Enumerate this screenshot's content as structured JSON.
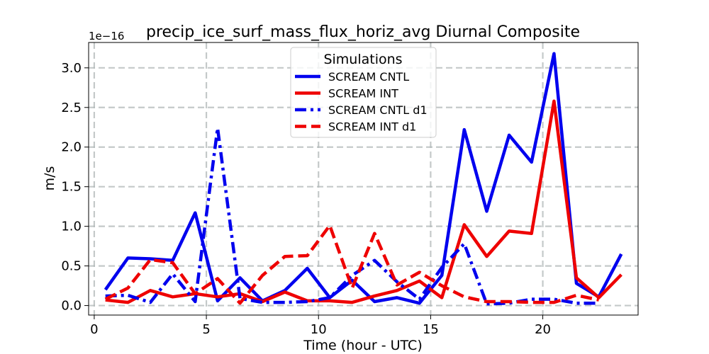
{
  "chart_data": {
    "type": "line",
    "title": "precip_ice_surf_mass_flux_horiz_avg Diurnal Composite",
    "xlabel": "Time (hour - UTC)",
    "ylabel": "m/s",
    "y_offset_text": "1e−16",
    "xlim": [
      -0.25,
      24.25
    ],
    "ylim": [
      -0.12,
      3.32
    ],
    "x_ticks": [
      0,
      5,
      10,
      15,
      20
    ],
    "x_tick_labels": [
      "0",
      "5",
      "10",
      "15",
      "20"
    ],
    "y_ticks": [
      0.0,
      0.5,
      1.0,
      1.5,
      2.0,
      2.5,
      3.0
    ],
    "y_tick_labels": [
      "0.0",
      "0.5",
      "1.0",
      "1.5",
      "2.0",
      "2.5",
      "3.0"
    ],
    "grid": true,
    "legend_title": "Simulations",
    "legend_position": "upper-center",
    "x": [
      0.5,
      1.5,
      2.5,
      3.5,
      4.5,
      5.5,
      6.5,
      7.5,
      8.5,
      9.5,
      10.5,
      11.5,
      12.5,
      13.5,
      14.5,
      15.5,
      16.5,
      17.5,
      18.5,
      19.5,
      20.5,
      21.5,
      22.5,
      23.5
    ],
    "series": [
      {
        "name": "SCREAM CNTL",
        "color": "#0000ee",
        "dash": "solid",
        "values": [
          0.2,
          0.6,
          0.59,
          0.57,
          1.17,
          0.06,
          0.35,
          0.06,
          0.19,
          0.47,
          0.1,
          0.32,
          0.05,
          0.1,
          0.03,
          0.38,
          2.22,
          1.19,
          2.15,
          1.81,
          3.18,
          0.28,
          0.11,
          0.65
        ]
      },
      {
        "name": "SCREAM INT",
        "color": "#ee0000",
        "dash": "solid",
        "values": [
          0.07,
          0.04,
          0.19,
          0.11,
          0.15,
          0.11,
          0.15,
          0.05,
          0.17,
          0.06,
          0.06,
          0.04,
          0.12,
          0.19,
          0.31,
          0.1,
          1.02,
          0.62,
          0.94,
          0.91,
          2.58,
          0.35,
          0.1,
          0.39
        ]
      },
      {
        "name": "SCREAM CNTL d1",
        "color": "#0000ee",
        "dash": "dashdot",
        "values": [
          0.12,
          0.13,
          0.04,
          0.4,
          0.05,
          2.24,
          0.09,
          0.04,
          0.04,
          0.05,
          0.1,
          0.38,
          0.57,
          0.3,
          0.08,
          0.48,
          0.78,
          0.02,
          0.03,
          0.08,
          0.08,
          0.03,
          0.03,
          null
        ]
      },
      {
        "name": "SCREAM INT d1",
        "color": "#ee0000",
        "dash": "dashed",
        "values": [
          0.08,
          0.22,
          0.58,
          0.54,
          0.15,
          0.34,
          0.03,
          0.38,
          0.62,
          0.63,
          1.01,
          0.22,
          0.91,
          0.26,
          0.42,
          0.25,
          0.11,
          0.05,
          0.05,
          0.04,
          0.04,
          0.13,
          0.07,
          null
        ]
      }
    ]
  }
}
